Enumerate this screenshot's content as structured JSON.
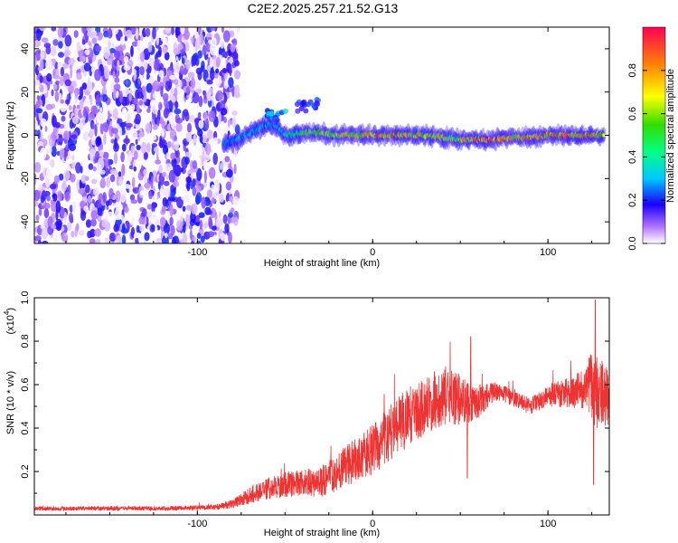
{
  "title": "C2E2.2025.257.21.52.G13",
  "chart_data": [
    {
      "type": "heatmap",
      "name": "spectrogram",
      "xlabel": "Height of straight line (km)",
      "ylabel": "Frequency (Hz)",
      "xlim": [
        -193,
        135
      ],
      "ylim": [
        -50,
        50
      ],
      "xticks": [
        -100,
        0,
        100
      ],
      "yticks": [
        -40,
        -20,
        0,
        20,
        40
      ],
      "colorbar": {
        "label": "Normalized spectral amplitude",
        "range": [
          0,
          1
        ],
        "ticks": [
          "0.0",
          "0.2",
          "0.4",
          "0.6",
          "0.8"
        ],
        "tick_values": [
          0.0,
          0.2,
          0.4,
          0.6,
          0.8
        ]
      },
      "noise_region_x": [
        -193,
        -77
      ],
      "signal_trace": {
        "x": [
          -85,
          -75,
          -65,
          -60,
          -55,
          -50,
          -40,
          -30,
          -20,
          -10,
          0,
          10,
          20,
          30,
          40,
          50,
          60,
          70,
          80,
          90,
          100,
          110,
          120,
          132
        ],
        "freq": [
          -4,
          -1,
          3,
          5,
          4,
          0,
          1,
          1,
          0,
          0,
          0,
          0,
          0,
          0,
          -1,
          -2,
          -2,
          -2,
          -1,
          -1,
          0,
          0,
          0,
          0
        ],
        "amplitude": [
          0.3,
          0.35,
          0.4,
          0.35,
          0.3,
          0.45,
          0.55,
          0.6,
          0.7,
          0.8,
          0.85,
          0.85,
          0.8,
          0.75,
          0.7,
          0.7,
          0.95,
          0.95,
          0.8,
          0.85,
          0.85,
          0.9,
          0.9,
          0.85
        ]
      },
      "side_features": [
        {
          "x": -55,
          "freq": 9,
          "amplitude": 0.35
        },
        {
          "x": -37,
          "freq": 14,
          "amplitude": 0.25
        }
      ]
    },
    {
      "type": "line",
      "name": "snr",
      "xlabel": "Height of straight line (km)",
      "ylabel": "SNR (10 * v/v)",
      "multiplier_label": "(x10",
      "multiplier_exp": "4",
      "multiplier_close": ")",
      "xlim": [
        -193,
        135
      ],
      "ylim": [
        0,
        1.0
      ],
      "xticks": [
        -100,
        0,
        100
      ],
      "yticks": [
        0.2,
        0.4,
        0.6,
        0.8,
        1.0
      ],
      "ytick_labels": [
        "0.2",
        "0.4",
        "0.6",
        "0.8",
        "1.0"
      ],
      "color": "#ee3333",
      "envelope": {
        "x": [
          -193,
          -160,
          -120,
          -90,
          -80,
          -70,
          -60,
          -50,
          -40,
          -30,
          -20,
          -10,
          0,
          10,
          20,
          30,
          40,
          50,
          60,
          70,
          80,
          90,
          100,
          110,
          120,
          125,
          128,
          132
        ],
        "mean": [
          0.03,
          0.03,
          0.03,
          0.035,
          0.05,
          0.09,
          0.12,
          0.14,
          0.15,
          0.15,
          0.2,
          0.25,
          0.3,
          0.38,
          0.45,
          0.5,
          0.55,
          0.53,
          0.52,
          0.57,
          0.54,
          0.5,
          0.55,
          0.56,
          0.58,
          0.6,
          0.55,
          0.55
        ],
        "spread": [
          0.01,
          0.01,
          0.01,
          0.012,
          0.02,
          0.04,
          0.05,
          0.06,
          0.06,
          0.07,
          0.09,
          0.1,
          0.12,
          0.13,
          0.14,
          0.13,
          0.14,
          0.12,
          0.08,
          0.04,
          0.04,
          0.04,
          0.05,
          0.07,
          0.09,
          0.15,
          0.18,
          0.15
        ]
      },
      "spikes": [
        {
          "x": 127,
          "value": 0.99
        },
        {
          "x": 126,
          "value": 0.14
        },
        {
          "x": 54,
          "value": 0.17
        },
        {
          "x": 56,
          "value": 0.82
        }
      ]
    }
  ]
}
